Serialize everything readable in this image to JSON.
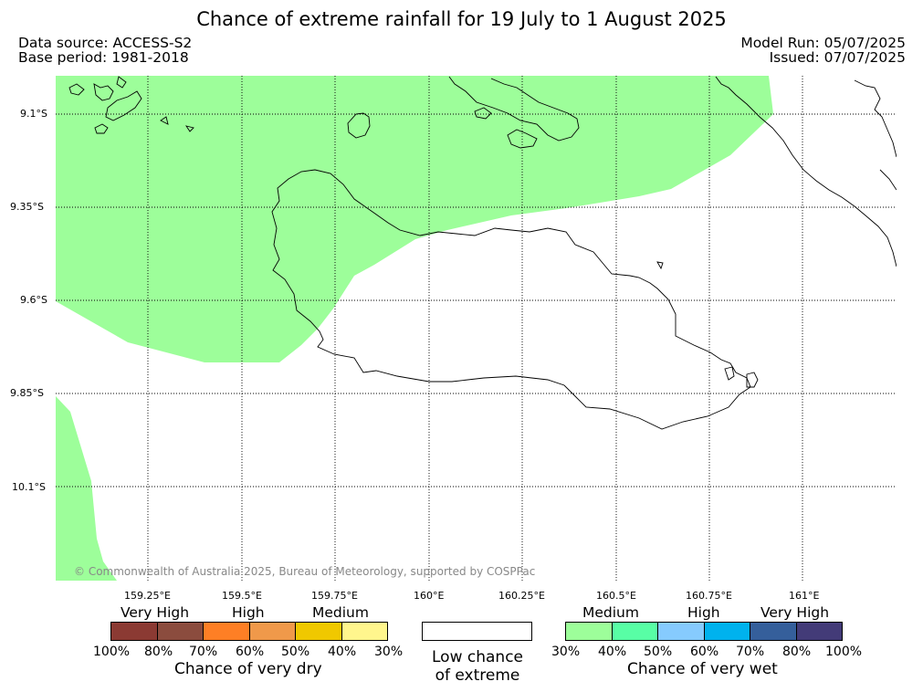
{
  "title": "Chance of extreme rainfall for 19 July to 1 August 2025",
  "meta_left": {
    "source": "Data source: ACCESS-S2",
    "base_period": "Base period: 1981-2018"
  },
  "meta_right": {
    "model_run": "Model Run: 05/07/2025",
    "issued": "Issued: 07/07/2025"
  },
  "map": {
    "latitude_labels": [
      "9.1°S",
      "9.35°S",
      "9.6°S",
      "9.85°S",
      "10.1°S"
    ],
    "longitude_labels": [
      "159.25°E",
      "159.5°E",
      "159.75°E",
      "160°E",
      "160.25°E",
      "160.5°E",
      "160.75°E",
      "161°E"
    ],
    "copyright": "© Commonwealth of Australia 2025, Bureau of Meteorology, supported by COSPPac",
    "shaded_category": "Medium chance of very wet (30%–40%)",
    "shade_color": "#9dfe9a",
    "land_outline_color": "#000000"
  },
  "legend": {
    "dry": {
      "tiers": [
        "Very High",
        "High",
        "Medium"
      ],
      "colors": [
        "#8b3a33",
        "#8b4c3e",
        "#fe7f25",
        "#f0994a",
        "#f0c800",
        "#fff68d"
      ],
      "ticks": [
        "100%",
        "80%",
        "70%",
        "60%",
        "50%",
        "40%",
        "30%"
      ],
      "caption": "Chance of very dry"
    },
    "neutral": {
      "caption_line1": "Low chance",
      "caption_line2": "of extreme",
      "color": "#ffffff"
    },
    "wet": {
      "tiers": [
        "Medium",
        "High",
        "Very High"
      ],
      "colors": [
        "#9dfe9a",
        "#58fea5",
        "#86cbfe",
        "#00b2ee",
        "#355f9b",
        "#433b78"
      ],
      "ticks": [
        "30%",
        "40%",
        "50%",
        "60%",
        "70%",
        "80%",
        "100%"
      ],
      "caption": "Chance of very wet"
    }
  }
}
